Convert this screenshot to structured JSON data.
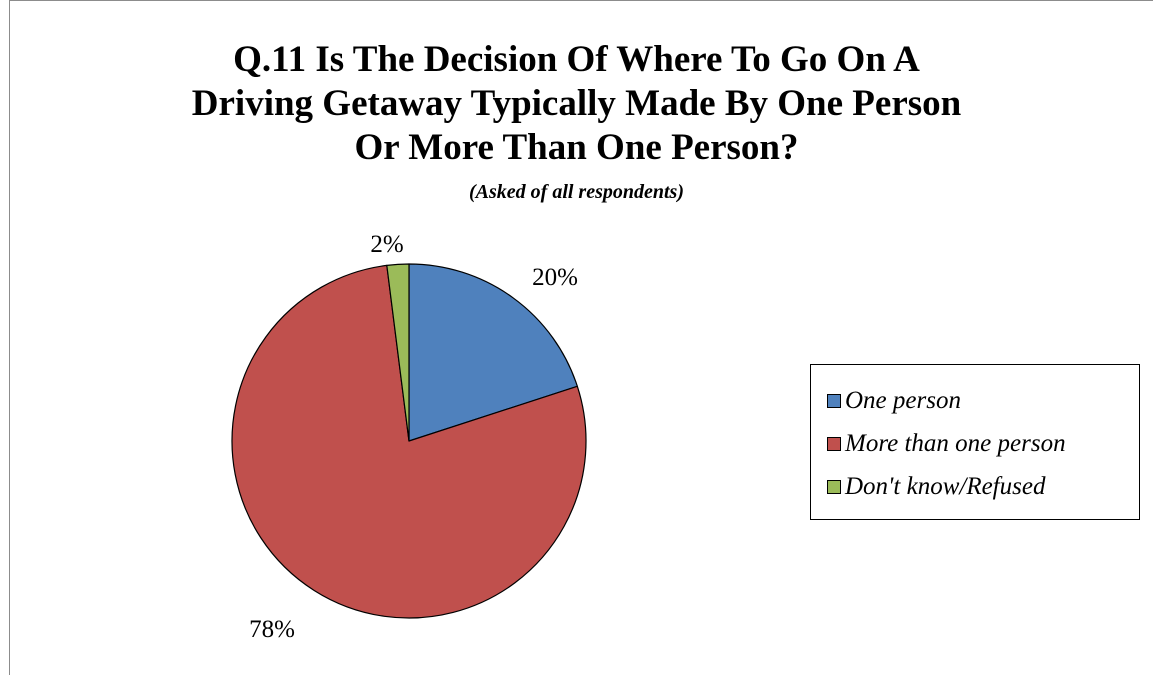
{
  "chart_data": {
    "type": "pie",
    "title": "Q.11 Is The Decision Of Where To Go On A Driving Getaway Typically Made By One Person Or More Than One Person?",
    "title_lines": [
      "Q.11 Is The Decision Of Where To Go On A",
      "Driving Getaway Typically Made By One Person",
      "Or More Than One Person?"
    ],
    "subtitle": "(Asked of all respondents)",
    "categories": [
      "One person",
      "More than one person",
      "Don't know/Refused"
    ],
    "values": [
      20,
      78,
      2
    ],
    "labels": [
      "20%",
      "78%",
      "2%"
    ],
    "colors": [
      "#4f81bd",
      "#c0504d",
      "#9bbb59"
    ],
    "legend_position": "right",
    "start_angle_deg": 0,
    "direction": "clockwise"
  }
}
